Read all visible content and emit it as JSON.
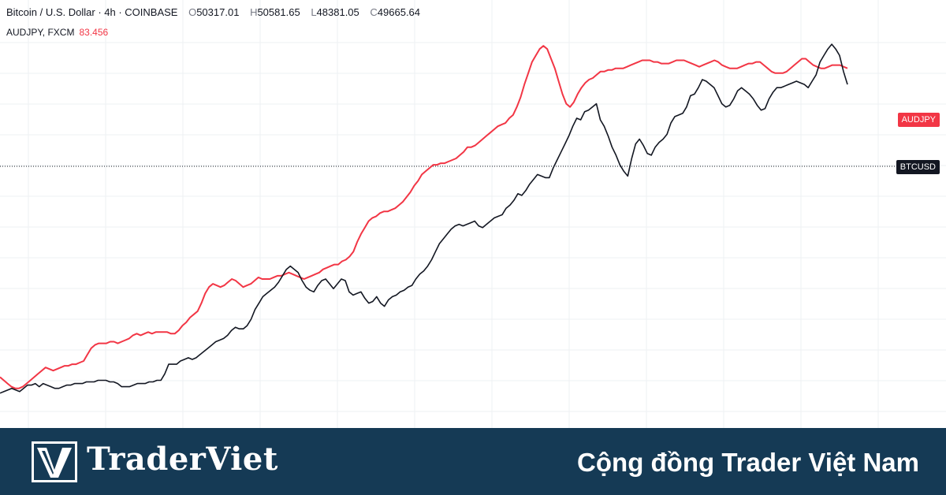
{
  "legend": {
    "symbol": "Bitcoin / U.S. Dollar · 4h · COINBASE",
    "open_label": "O",
    "open": "50317.01",
    "high_label": "H",
    "high": "50581.65",
    "low_label": "L",
    "low": "48381.05",
    "close_label": "C",
    "close": "49665.64",
    "overlay": "AUDJPY, FXCM",
    "overlay_value": "83.456"
  },
  "tags": {
    "audjpy": "AUDJPY",
    "btcusd": "BTCUSD"
  },
  "banner": {
    "brand": "TraderViet",
    "tagline": "Cộng đồng Trader Việt Nam"
  },
  "colors": {
    "btc": "#131722",
    "audjpy": "#f23645",
    "banner": "#153a55"
  },
  "chart_data": {
    "type": "line",
    "series": [
      {
        "name": "BTCUSD",
        "color": "#131722",
        "values": [
          30,
          31,
          32,
          33,
          32,
          31,
          33,
          35,
          35,
          36,
          34,
          36,
          35,
          34,
          33,
          33,
          34,
          35,
          35,
          36,
          36,
          36,
          37,
          37,
          37,
          38,
          38,
          38,
          37,
          37,
          36,
          34,
          34,
          34,
          35,
          36,
          36,
          36,
          37,
          37,
          38,
          38,
          42,
          48,
          48,
          48,
          50,
          51,
          52,
          51,
          52,
          54,
          56,
          58,
          60,
          62,
          63,
          64,
          66,
          69,
          71,
          70,
          70,
          72,
          76,
          82,
          86,
          90,
          92,
          94,
          96,
          99,
          103,
          107,
          109,
          107,
          105,
          100,
          96,
          94,
          93,
          97,
          100,
          101,
          98,
          95,
          98,
          101,
          100,
          93,
          91,
          92,
          93,
          89,
          86,
          87,
          90,
          86,
          84,
          88,
          90,
          91,
          93,
          94,
          96,
          97,
          101,
          104,
          106,
          109,
          113,
          118,
          123,
          126,
          129,
          132,
          134,
          135,
          134,
          135,
          136,
          137,
          134,
          133,
          135,
          137,
          139,
          140,
          141,
          145,
          147,
          150,
          154,
          153,
          156,
          160,
          163,
          166,
          165,
          164,
          164,
          170,
          175,
          180,
          185,
          190,
          196,
          201,
          200,
          205,
          206,
          208,
          210,
          200,
          196,
          190,
          183,
          178,
          172,
          168,
          165,
          176,
          185,
          188,
          184,
          179,
          178,
          183,
          186,
          188,
          191,
          198,
          202,
          203,
          204,
          208,
          215,
          216,
          220,
          225,
          224,
          222,
          220,
          215,
          210,
          208,
          209,
          213,
          218,
          220,
          218,
          216,
          213,
          209,
          206,
          207,
          213,
          217,
          220,
          220,
          221,
          222,
          223,
          224,
          223,
          222,
          220,
          224,
          228,
          236,
          240,
          244,
          247,
          244,
          240,
          230,
          222
        ]
      },
      {
        "name": "AUDJPY",
        "color": "#f23645",
        "values": [
          40,
          38,
          36,
          34,
          33,
          33,
          34,
          36,
          38,
          40,
          42,
          44,
          46,
          45,
          44,
          45,
          46,
          47,
          47,
          48,
          48,
          49,
          50,
          54,
          58,
          60,
          61,
          61,
          61,
          62,
          62,
          61,
          62,
          63,
          64,
          66,
          67,
          66,
          67,
          68,
          67,
          68,
          68,
          68,
          68,
          67,
          67,
          69,
          72,
          74,
          77,
          79,
          81,
          86,
          92,
          96,
          98,
          97,
          96,
          97,
          99,
          101,
          100,
          98,
          96,
          97,
          98,
          100,
          102,
          101,
          101,
          101,
          102,
          103,
          103,
          104,
          105,
          104,
          103,
          102,
          101,
          102,
          103,
          104,
          105,
          107,
          108,
          109,
          110,
          110,
          112,
          113,
          115,
          118,
          124,
          129,
          133,
          137,
          139,
          140,
          142,
          143,
          143,
          144,
          145,
          147,
          149,
          152,
          155,
          159,
          162,
          166,
          168,
          170,
          172,
          172,
          173,
          173,
          174,
          175,
          176,
          178,
          180,
          183,
          183,
          184,
          186,
          188,
          190,
          192,
          194,
          196,
          197,
          198,
          201,
          203,
          208,
          214,
          222,
          229,
          236,
          240,
          244,
          246,
          244,
          238,
          232,
          224,
          216,
          210,
          208,
          211,
          216,
          220,
          223,
          225,
          226,
          228,
          230,
          230,
          231,
          231,
          232,
          232,
          232,
          233,
          234,
          235,
          236,
          237,
          237,
          237,
          236,
          236,
          235,
          235,
          235,
          236,
          237,
          237,
          237,
          236,
          235,
          234,
          233,
          234,
          235,
          236,
          237,
          236,
          234,
          233,
          232,
          232,
          232,
          233,
          234,
          235,
          235,
          236,
          236,
          234,
          232,
          230,
          229,
          229,
          229,
          230,
          232,
          234,
          236,
          238,
          238,
          236,
          234,
          233,
          232,
          232,
          233,
          234,
          234,
          234,
          233,
          232
        ]
      }
    ],
    "xlabel": "",
    "ylabel": "",
    "grid": true,
    "legend_position": "top-left"
  }
}
